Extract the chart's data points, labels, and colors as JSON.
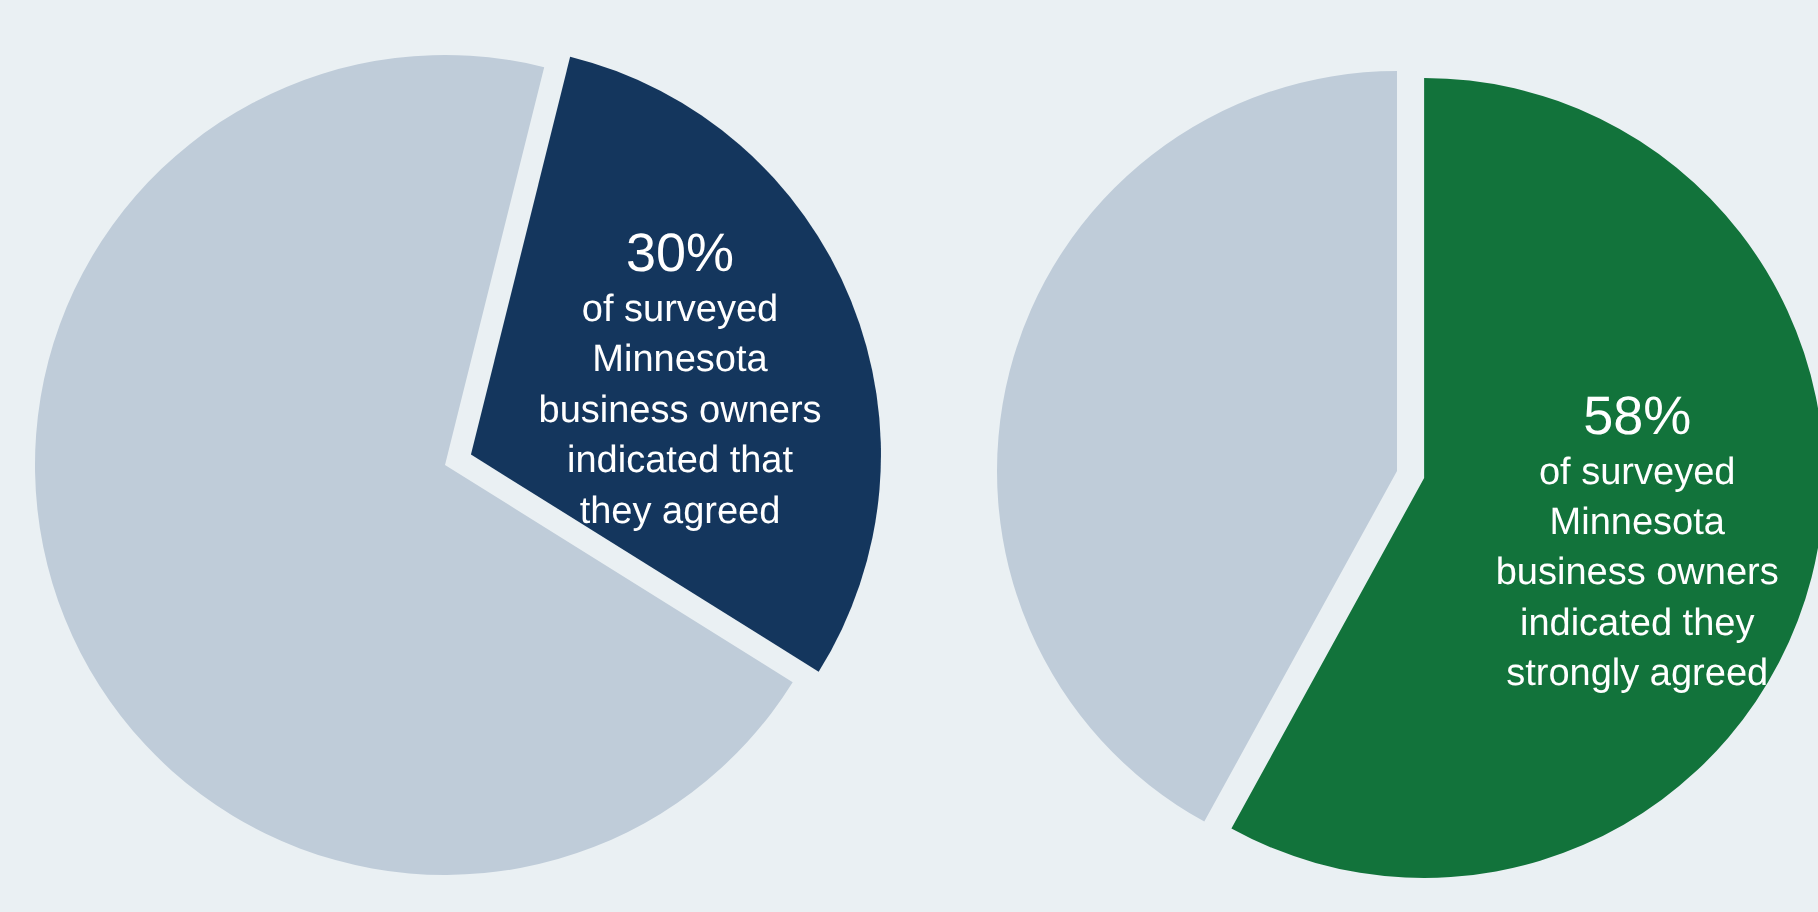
{
  "chart_data": [
    {
      "type": "pie",
      "categories": [
        null,
        null
      ],
      "values": [
        30,
        70
      ],
      "colors": [
        "#14365d",
        "#bfccd9"
      ],
      "value_labels": [
        "30%",
        null
      ],
      "annotations": [
        "of surveyed\nMinnesota\nbusiness owners\nindicated that\nthey agreed"
      ]
    },
    {
      "type": "pie",
      "categories": [
        null,
        null
      ],
      "values": [
        58,
        42
      ],
      "colors": [
        "#12733b",
        "#bfccd9"
      ],
      "value_labels": [
        "58%",
        null
      ],
      "annotations": [
        "of surveyed\nMinnesota\nbusiness owners\nindicated they\nstrongly agreed"
      ]
    }
  ]
}
